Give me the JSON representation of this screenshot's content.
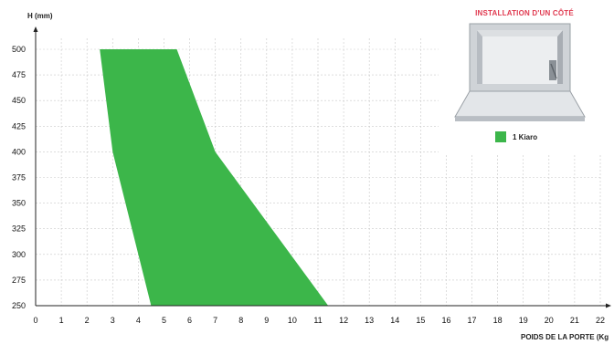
{
  "chart_data": {
    "type": "area",
    "ylabel": "H (mm)",
    "xlabel": "POIDS DE LA PORTE (Kg",
    "x_ticks": [
      "0",
      "1",
      "2",
      "3",
      "4",
      "5",
      "6",
      "7",
      "8",
      "9",
      "10",
      "11",
      "12",
      "13",
      "14",
      "15",
      "16",
      "17",
      "18",
      "19",
      "20",
      "21",
      "22"
    ],
    "y_ticks": [
      "250",
      "275",
      "300",
      "325",
      "350",
      "375",
      "400",
      "425",
      "450",
      "475",
      "500"
    ],
    "xlim": [
      0,
      22
    ],
    "ylim": [
      250,
      500
    ],
    "grid": true,
    "series": [
      {
        "name": "1 Kiaro",
        "color": "#3cb64a",
        "polygon": [
          {
            "x": 2.5,
            "y": 500
          },
          {
            "x": 5.5,
            "y": 500
          },
          {
            "x": 7.0,
            "y": 400
          },
          {
            "x": 11.4,
            "y": 250
          },
          {
            "x": 4.5,
            "y": 250
          },
          {
            "x": 3.0,
            "y": 400
          }
        ]
      }
    ],
    "legend": {
      "position": "top-right",
      "label": "1 Kiaro"
    },
    "inset": {
      "title": "INSTALLATION D'UN CÔTÉ",
      "title_color": "#e03a50",
      "illustration": "cabinet-with-flap-door"
    }
  }
}
